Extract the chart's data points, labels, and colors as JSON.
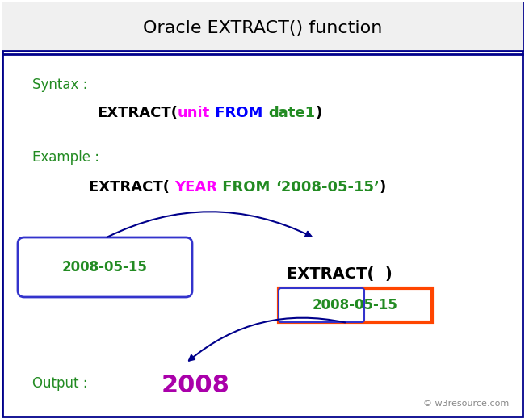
{
  "title": "Oracle EXTRACT() function",
  "title_fontsize": 16,
  "title_color": "#000000",
  "bg_color": "#ffffff",
  "outer_border_color": "#00008B",
  "syntax_label": "Syntax :",
  "syntax_label_color": "#228B22",
  "example_label": "Example :",
  "example_label_color": "#228B22",
  "syntax_parts": [
    {
      "text": "EXTRACT(",
      "color": "#000000"
    },
    {
      "text": "unit",
      "color": "#FF00FF"
    },
    {
      "text": " FROM ",
      "color": "#0000FF"
    },
    {
      "text": "date1",
      "color": "#228B22"
    },
    {
      "text": ")",
      "color": "#000000"
    }
  ],
  "example_parts": [
    {
      "text": "EXTRACT( ",
      "color": "#000000"
    },
    {
      "text": "YEAR",
      "color": "#FF00FF"
    },
    {
      "text": " FROM ",
      "color": "#228B22"
    },
    {
      "text": "‘2008-05-15’",
      "color": "#228B22"
    },
    {
      "text": ")",
      "color": "#000000"
    }
  ],
  "date_box_text": "2008-05-15",
  "date_box_text_color": "#228B22",
  "date_box_border_color": "#3333CC",
  "extract_func_text": "EXTRACT(  )",
  "extract_func_color": "#000000",
  "orange_box_color": "#FF4500",
  "inner_date_text": "2008-05-15",
  "inner_date_text_color": "#228B22",
  "inner_blue_box_color": "#3333CC",
  "output_label": "Output :",
  "output_label_color": "#228B22",
  "output_value": "2008",
  "output_value_color": "#AA00AA",
  "watermark": "© w3resource.com",
  "watermark_color": "#888888",
  "arrow_color": "#00008B",
  "fontsize_code": 13,
  "fontsize_label": 12,
  "fontsize_output": 22
}
